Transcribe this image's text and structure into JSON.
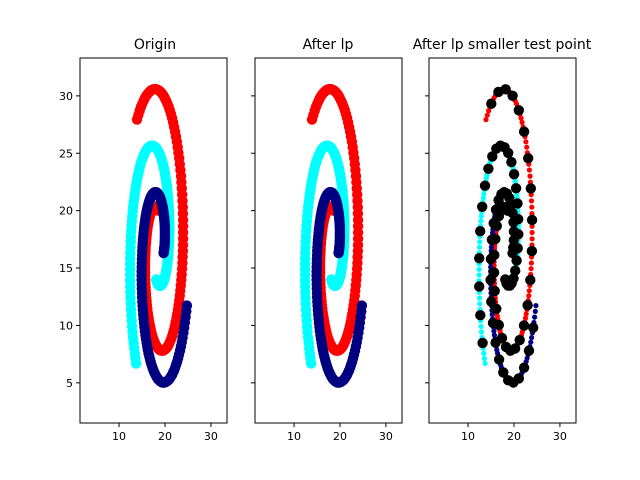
{
  "figure": {
    "background": "#ffffff"
  },
  "chart_data": [
    {
      "type": "scatter",
      "title": "Origin",
      "xlim": [
        1.5,
        33.5
      ],
      "ylim": [
        1.5,
        33.3
      ],
      "xticks": [
        10,
        20,
        30
      ],
      "yticks": [
        5,
        10,
        15,
        20,
        25,
        30
      ],
      "show_yticklabels": true,
      "series": [
        {
          "color": "#ff0000",
          "marker": "large",
          "points": []
        },
        {
          "color": "#00ffff",
          "marker": "large",
          "points": []
        },
        {
          "color": "#000080",
          "marker": "large",
          "points": []
        }
      ]
    },
    {
      "type": "scatter",
      "title": "After lp",
      "xlim": [
        1.5,
        33.5
      ],
      "ylim": [
        1.5,
        33.3
      ],
      "xticks": [
        10,
        20,
        30
      ],
      "yticks": [
        5,
        10,
        15,
        20,
        25,
        30
      ],
      "show_yticklabels": false,
      "series": [
        {
          "color": "#ff0000",
          "marker": "large",
          "points": []
        },
        {
          "color": "#00ffff",
          "marker": "large",
          "points": []
        },
        {
          "color": "#000080",
          "marker": "large",
          "points": []
        }
      ]
    },
    {
      "type": "scatter",
      "title": "After lp smaller test point",
      "xlim": [
        1.5,
        33.5
      ],
      "ylim": [
        1.5,
        33.3
      ],
      "xticks": [
        10,
        20,
        30
      ],
      "yticks": [
        5,
        10,
        15,
        20,
        25,
        30
      ],
      "show_yticklabels": false,
      "series": [
        {
          "color": "#ff0000",
          "marker": "small",
          "points": []
        },
        {
          "color": "#00ffff",
          "marker": "small",
          "points": []
        },
        {
          "color": "#000080",
          "marker": "small",
          "points": []
        },
        {
          "color": "#000000",
          "marker": "large",
          "points": []
        }
      ]
    }
  ]
}
